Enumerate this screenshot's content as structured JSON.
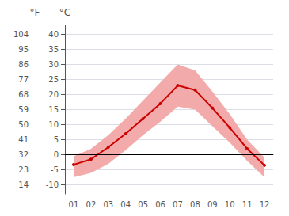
{
  "chart_data": {
    "type": "line",
    "categories": [
      "01",
      "02",
      "03",
      "04",
      "05",
      "06",
      "07",
      "08",
      "09",
      "10",
      "11",
      "12"
    ],
    "series": [
      {
        "values": [
          -3.3,
          -1.5,
          2.5,
          7.0,
          12.0,
          17.0,
          23.0,
          21.5,
          15.5,
          9.0,
          2.0,
          -3.5
        ],
        "color": "#cc0000",
        "marker": "circle"
      }
    ],
    "band": {
      "low": [
        -7.5,
        -6.0,
        -3.0,
        1.5,
        6.5,
        11.0,
        16.0,
        15.0,
        9.5,
        4.0,
        -2.0,
        -7.5
      ],
      "high": [
        -0.5,
        2.0,
        6.5,
        12.0,
        18.0,
        24.0,
        30.0,
        28.0,
        21.0,
        13.5,
        5.0,
        -1.0
      ],
      "color": "#f2aaaa"
    },
    "reference_line": {
      "value": 0,
      "color": "#000000"
    },
    "ylabel": "°C",
    "ylim": [
      -13,
      43
    ],
    "yticks": [
      40,
      35,
      30,
      25,
      20,
      15,
      10,
      5,
      0,
      -5,
      -10
    ],
    "y2label": "°F",
    "y2lim": [
      8.6,
      109.4
    ],
    "y2ticks": [
      104,
      95,
      86,
      77,
      68,
      59,
      50,
      41,
      32,
      23,
      14
    ],
    "grid": true
  }
}
